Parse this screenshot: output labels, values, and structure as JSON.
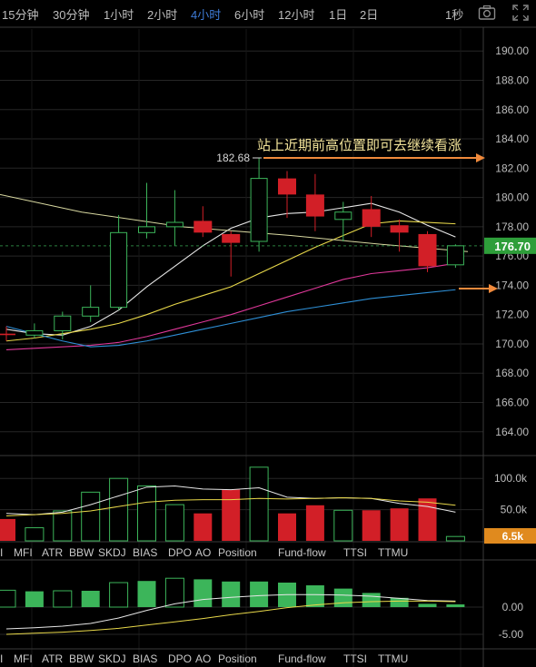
{
  "toolbar": {
    "timeframes": [
      "15分钟",
      "30分钟",
      "1小时",
      "2小时",
      "4小时",
      "6小时",
      "12小时",
      "1日",
      "2日"
    ],
    "active": "4小时",
    "interval_label": "1秒",
    "camera_icon": "camera-icon",
    "fullscreen_icon": "fullscreen-icon"
  },
  "annotation": {
    "text": "站上近期前高位置即可去继续看涨",
    "high_label": "182.68",
    "arrow_color": "#f08a3c"
  },
  "indicator_tabs": [
    "I",
    "MFI",
    "ATR",
    "BBW",
    "SKDJ",
    "BIAS",
    "DPO",
    "AO",
    "Position",
    "Fund-flow",
    "TTSI",
    "TTMU"
  ],
  "colors": {
    "up": "#3cb55a",
    "down": "#d21f27",
    "ma_white": "#e6e6e6",
    "ma_yellow": "#e8d84a",
    "ma_pink": "#e0389a",
    "ma_blue": "#2e8fd6",
    "grid": "#262626",
    "price_tag": "#2e9e3a",
    "volume_tag": "#e08a1e"
  },
  "chart_data": [
    {
      "type": "candlestick",
      "ylim": [
        162.5,
        191.5
      ],
      "yticks": [
        "190.00",
        "188.00",
        "186.00",
        "184.00",
        "182.00",
        "180.00",
        "178.00",
        "176.00",
        "174.00",
        "172.00",
        "170.00",
        "168.00",
        "166.00",
        "164.00"
      ],
      "current_price": "176.70",
      "candles": [
        {
          "o": 170.7,
          "c": 170.6,
          "h": 171.2,
          "l": 170.2
        },
        {
          "o": 170.6,
          "c": 170.9,
          "h": 171.4,
          "l": 170.4
        },
        {
          "o": 170.9,
          "c": 171.9,
          "h": 172.2,
          "l": 170.3
        },
        {
          "o": 171.9,
          "c": 172.5,
          "h": 174.0,
          "l": 171.5
        },
        {
          "o": 172.5,
          "c": 177.6,
          "h": 178.8,
          "l": 172.3
        },
        {
          "o": 177.6,
          "c": 178.0,
          "h": 181.0,
          "l": 177.2
        },
        {
          "o": 178.0,
          "c": 178.3,
          "h": 180.5,
          "l": 176.7
        },
        {
          "o": 178.4,
          "c": 177.6,
          "h": 179.4,
          "l": 177.3
        },
        {
          "o": 177.5,
          "c": 176.9,
          "h": 177.7,
          "l": 174.6
        },
        {
          "o": 177.0,
          "c": 181.3,
          "h": 182.7,
          "l": 176.3
        },
        {
          "o": 181.3,
          "c": 180.2,
          "h": 181.8,
          "l": 178.6
        },
        {
          "o": 180.2,
          "c": 178.7,
          "h": 181.6,
          "l": 177.7
        },
        {
          "o": 178.5,
          "c": 179.0,
          "h": 179.7,
          "l": 177.0
        },
        {
          "o": 179.2,
          "c": 178.0,
          "h": 180.1,
          "l": 177.3
        },
        {
          "o": 178.1,
          "c": 177.6,
          "h": 178.5,
          "l": 176.3
        },
        {
          "o": 177.5,
          "c": 175.3,
          "h": 177.7,
          "l": 174.9
        },
        {
          "o": 175.4,
          "c": 176.7,
          "h": 176.8,
          "l": 175.2
        }
      ],
      "ma_white": [
        171.0,
        170.7,
        170.6,
        171.2,
        172.3,
        173.9,
        175.3,
        176.7,
        177.9,
        178.6,
        178.9,
        179.0,
        179.3,
        179.6,
        179.0,
        178.1,
        177.3
      ],
      "ma_yellow": [
        170.2,
        170.4,
        170.7,
        171.0,
        171.4,
        172.0,
        172.7,
        173.3,
        173.9,
        174.8,
        175.7,
        176.6,
        177.4,
        178.2,
        178.4,
        178.3,
        178.2
      ],
      "ma_pink": [
        169.6,
        169.7,
        169.8,
        169.9,
        170.1,
        170.5,
        171.0,
        171.5,
        172.0,
        172.6,
        173.2,
        173.8,
        174.4,
        174.8,
        175.0,
        175.2,
        175.5
      ],
      "ma_blue": [
        171.2,
        170.7,
        170.2,
        169.8,
        169.9,
        170.2,
        170.6,
        171.0,
        171.4,
        171.8,
        172.2,
        172.5,
        172.8,
        173.1,
        173.3,
        173.5,
        173.7
      ]
    },
    {
      "type": "bar",
      "name": "volume",
      "yticks": [
        "100.0k",
        "50.0k"
      ],
      "current_value": "6.5k",
      "values": [
        35,
        21,
        48,
        78,
        100,
        88,
        58,
        44,
        82,
        118,
        44,
        57,
        49,
        49,
        52,
        68,
        7
      ],
      "ma_white": [
        44,
        42,
        46,
        58,
        72,
        86,
        88,
        83,
        82,
        85,
        70,
        68,
        69,
        68,
        60,
        55,
        46
      ],
      "ma_yellow": [
        40,
        42,
        44,
        48,
        55,
        62,
        65,
        66,
        66,
        68,
        67,
        68,
        69,
        68,
        64,
        62,
        57
      ]
    },
    {
      "type": "bar",
      "name": "oscillator",
      "yticks": [
        "0.00",
        "-5.00"
      ],
      "values": [
        3.1,
        2.9,
        3.0,
        3.0,
        4.5,
        4.8,
        5.3,
        5.1,
        4.7,
        4.7,
        4.5,
        4.0,
        3.4,
        2.6,
        1.7,
        0.6,
        0.5
      ],
      "signal_white": [
        -4.0,
        -3.8,
        -3.5,
        -3.0,
        -2.0,
        -0.6,
        0.6,
        1.4,
        1.8,
        2.1,
        2.3,
        2.3,
        2.2,
        2.0,
        1.6,
        1.2,
        1.1
      ],
      "signal_yellow": [
        -5.0,
        -4.8,
        -4.6,
        -4.3,
        -3.9,
        -3.3,
        -2.7,
        -2.1,
        -1.4,
        -0.8,
        -0.1,
        0.4,
        0.8,
        1.0,
        1.1,
        1.1,
        1.0
      ]
    }
  ]
}
